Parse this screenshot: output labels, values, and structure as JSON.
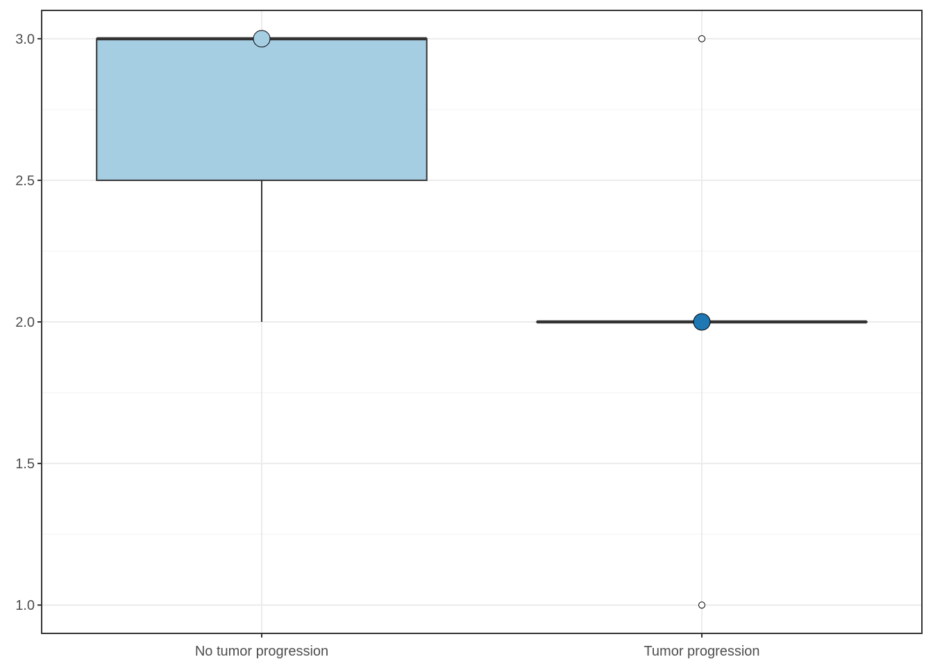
{
  "chart_data": {
    "type": "box",
    "title": "",
    "xlabel": "",
    "ylabel": "",
    "ylim": [
      0.9,
      3.1
    ],
    "yticks": [
      1.0,
      1.5,
      2.0,
      2.5,
      3.0
    ],
    "ytick_labels": [
      "1.0",
      "1.5",
      "2.0",
      "2.5",
      "3.0"
    ],
    "grid": true,
    "categories": [
      "No tumor progression",
      "Tumor progression"
    ],
    "boxes": [
      {
        "category": "No tumor progression",
        "q1": 2.5,
        "median": 3.0,
        "q3": 3.0,
        "whisker_low": 2.0,
        "whisker_high": 3.0,
        "outliers": [],
        "mean": 3.0,
        "fill": "#a6cee3",
        "mean_fill": "#a6cee3"
      },
      {
        "category": "Tumor progression",
        "q1": 2.0,
        "median": 2.0,
        "q3": 2.0,
        "whisker_low": 2.0,
        "whisker_high": 2.0,
        "outliers": [
          3.0,
          1.0
        ],
        "mean": 2.0,
        "fill": "#1f78b4",
        "mean_fill": "#1f78b4"
      }
    ],
    "colors": {
      "panel_border": "#333333",
      "grid_major": "#ebebeb",
      "grid_minor": "#f2f2f2",
      "box_line": "#333333",
      "tick": "#4d4d4d"
    }
  }
}
